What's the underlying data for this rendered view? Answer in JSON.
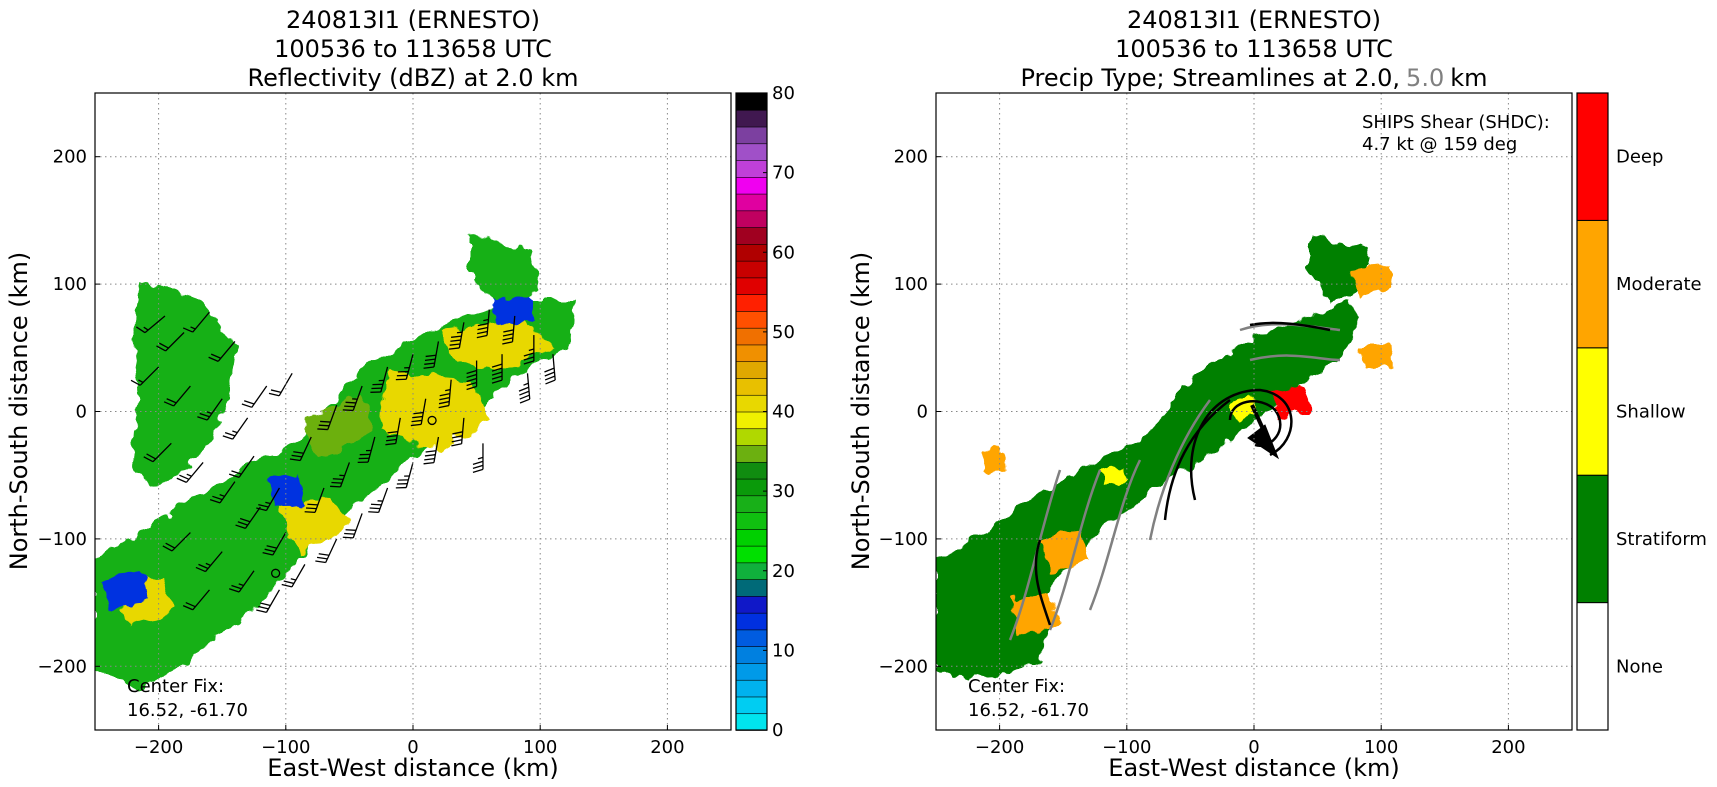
{
  "figure": {
    "panels": [
      {
        "title_lines": [
          "240813I1 (ERNESTO)",
          "100536 to 113658 UTC",
          "Reflectivity (dBZ) at 2.0 km"
        ],
        "xlabel": "East-West distance (km)",
        "ylabel": "North-South distance (km)",
        "annotation_lines": [
          "Center Fix:",
          "16.52, -61.70"
        ]
      },
      {
        "title_lines": [
          "240813I1 (ERNESTO)",
          "100536 to 113658 UTC"
        ],
        "title_line3": {
          "prefix": "Precip Type; Streamlines at 2.0,",
          "gray": "5.0",
          "suffix": "km"
        },
        "xlabel": "East-West distance (km)",
        "ylabel": "North-South distance (km)",
        "annotation_lines": [
          "Center Fix:",
          "16.52, -61.70"
        ],
        "shear_lines": [
          "SHIPS Shear (SHDC):",
          "4.7 kt @ 159 deg"
        ]
      }
    ]
  },
  "chart_data": [
    {
      "type": "heatmap",
      "title": "Reflectivity (dBZ) at 2.0 km",
      "xlabel": "East-West distance (km)",
      "ylabel": "North-South distance (km)",
      "xlim": [
        -250,
        250
      ],
      "ylim": [
        -250,
        250
      ],
      "xticks": [
        -200,
        -100,
        0,
        100,
        200
      ],
      "yticks": [
        -200,
        -100,
        0,
        100,
        200
      ],
      "grid": true,
      "colorbar": {
        "label_ticks": [
          0,
          10,
          20,
          30,
          40,
          50,
          60,
          70,
          80
        ],
        "range": [
          0,
          80
        ],
        "colors": [
          "#00e5ee",
          "#00cdf2",
          "#00b2ee",
          "#009ae8",
          "#0080e0",
          "#005ce0",
          "#0030e0",
          "#1018c8",
          "#006a78",
          "#10b03c",
          "#00e000",
          "#00d000",
          "#10c010",
          "#18b018",
          "#0a9a0a",
          "#108c10",
          "#6cb010",
          "#b0d800",
          "#f0f000",
          "#e8d800",
          "#e8c000",
          "#e0a800",
          "#f09000",
          "#f07000",
          "#ff5000",
          "#ff2000",
          "#e00000",
          "#c80000",
          "#b00000",
          "#a00020",
          "#c00060",
          "#e000a0",
          "#f000f0",
          "#c040d8",
          "#a050c8",
          "#7c40a0",
          "#401850",
          "#000000"
        ]
      },
      "wind_barbs": [
        [
          -195,
          75,
          230,
          15
        ],
        [
          -180,
          62,
          225,
          20
        ],
        [
          -160,
          78,
          220,
          15
        ],
        [
          -140,
          55,
          220,
          20
        ],
        [
          -200,
          35,
          225,
          15
        ],
        [
          -175,
          20,
          220,
          20
        ],
        [
          -150,
          10,
          215,
          25
        ],
        [
          -130,
          -5,
          215,
          25
        ],
        [
          -115,
          20,
          215,
          20
        ],
        [
          -95,
          30,
          210,
          20
        ],
        [
          -190,
          -25,
          225,
          20
        ],
        [
          -165,
          -40,
          220,
          25
        ],
        [
          -140,
          -55,
          215,
          25
        ],
        [
          -120,
          -75,
          215,
          30
        ],
        [
          -100,
          -95,
          210,
          30
        ],
        [
          -175,
          -95,
          225,
          20
        ],
        [
          -150,
          -110,
          220,
          25
        ],
        [
          -125,
          -125,
          215,
          25
        ],
        [
          -105,
          -140,
          210,
          30
        ],
        [
          -160,
          -140,
          220,
          20
        ],
        [
          -80,
          -20,
          205,
          30
        ],
        [
          -60,
          5,
          200,
          30
        ],
        [
          -40,
          20,
          200,
          35
        ],
        [
          -20,
          35,
          195,
          35
        ],
        [
          0,
          45,
          195,
          35
        ],
        [
          20,
          55,
          190,
          40
        ],
        [
          40,
          70,
          190,
          45
        ],
        [
          60,
          80,
          185,
          45
        ],
        [
          80,
          75,
          185,
          40
        ],
        [
          95,
          60,
          180,
          35
        ],
        [
          -70,
          -60,
          200,
          30
        ],
        [
          -50,
          -40,
          200,
          35
        ],
        [
          -30,
          -20,
          195,
          35
        ],
        [
          -10,
          -5,
          190,
          40
        ],
        [
          10,
          10,
          190,
          40
        ],
        [
          30,
          25,
          185,
          45
        ],
        [
          50,
          40,
          180,
          50
        ],
        [
          70,
          45,
          180,
          50
        ],
        [
          90,
          30,
          175,
          45
        ],
        [
          110,
          45,
          175,
          40
        ],
        [
          -60,
          -100,
          205,
          30
        ],
        [
          -40,
          -80,
          200,
          30
        ],
        [
          -20,
          -60,
          200,
          35
        ],
        [
          0,
          -40,
          195,
          35
        ],
        [
          20,
          -20,
          190,
          40
        ],
        [
          40,
          -5,
          185,
          40
        ],
        [
          55,
          -25,
          180,
          35
        ],
        [
          -85,
          -120,
          210,
          25
        ],
        [
          -105,
          -60,
          210,
          25
        ],
        [
          -125,
          -35,
          215,
          20
        ]
      ],
      "center_markers": [
        [
          15,
          -7
        ],
        [
          -108,
          -127
        ]
      ]
    },
    {
      "type": "heatmap",
      "title": "Precip Type; Streamlines at 2.0, 5.0 km",
      "xlabel": "East-West distance (km)",
      "ylabel": "North-South distance (km)",
      "xlim": [
        -250,
        250
      ],
      "ylim": [
        -250,
        250
      ],
      "xticks": [
        -200,
        -100,
        0,
        100,
        200
      ],
      "yticks": [
        -200,
        -100,
        0,
        100,
        200
      ],
      "grid": true,
      "categories": [
        "None",
        "Stratiform",
        "Shallow",
        "Moderate",
        "Deep"
      ],
      "category_colors": [
        "#ffffff",
        "#008000",
        "#ffff00",
        "#ffa500",
        "#ff0000"
      ],
      "streamline_levels": [
        "2.0 km",
        "5.0 km"
      ]
    }
  ]
}
